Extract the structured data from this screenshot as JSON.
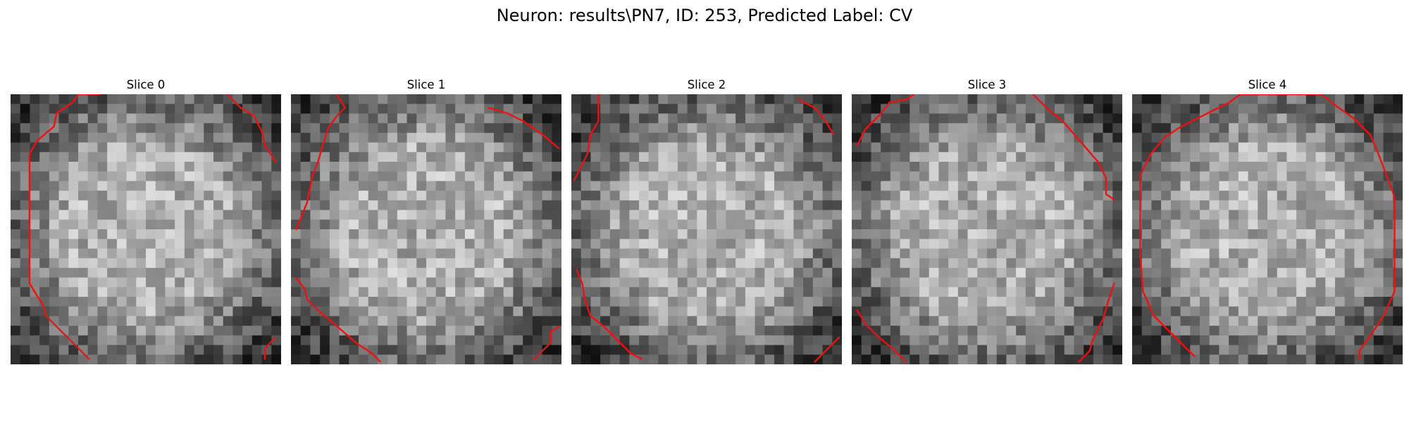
{
  "figure": {
    "title": "Neuron: results\\PN7, ID: 253, Predicted Label: CV"
  },
  "colors": {
    "contour": "#ee1111",
    "background": "#ffffff",
    "text": "#000000"
  },
  "panels": [
    {
      "title": "Slice 0",
      "contours": [
        [
          [
            0.33,
            0.0
          ],
          [
            0.25,
            0.0
          ],
          [
            0.23,
            0.03
          ],
          [
            0.17,
            0.07
          ],
          [
            0.16,
            0.12
          ],
          [
            0.1,
            0.17
          ],
          [
            0.07,
            0.22
          ],
          [
            0.07,
            0.7
          ],
          [
            0.1,
            0.75
          ],
          [
            0.12,
            0.78
          ],
          [
            0.13,
            0.82
          ],
          [
            0.17,
            0.86
          ],
          [
            0.23,
            0.92
          ],
          [
            0.29,
            0.98
          ]
        ],
        [
          [
            0.8,
            0.0
          ],
          [
            0.85,
            0.05
          ],
          [
            0.9,
            0.08
          ],
          [
            0.93,
            0.14
          ],
          [
            0.94,
            0.19
          ],
          [
            0.96,
            0.22
          ],
          [
            0.98,
            0.25
          ]
        ],
        [
          [
            0.98,
            0.9
          ],
          [
            0.94,
            0.94
          ],
          [
            0.94,
            0.98
          ]
        ]
      ]
    },
    {
      "title": "Slice 1",
      "contours": [
        [
          [
            0.17,
            0.0
          ],
          [
            0.2,
            0.05
          ],
          [
            0.17,
            0.08
          ],
          [
            0.14,
            0.12
          ],
          [
            0.12,
            0.18
          ],
          [
            0.1,
            0.25
          ],
          [
            0.08,
            0.3
          ],
          [
            0.07,
            0.35
          ],
          [
            0.06,
            0.4
          ],
          [
            0.04,
            0.45
          ],
          [
            0.02,
            0.5
          ]
        ],
        [
          [
            0.73,
            0.05
          ],
          [
            0.8,
            0.07
          ],
          [
            0.86,
            0.1
          ],
          [
            0.93,
            0.15
          ],
          [
            0.99,
            0.2
          ]
        ],
        [
          [
            0.02,
            0.68
          ],
          [
            0.05,
            0.72
          ],
          [
            0.06,
            0.76
          ],
          [
            0.1,
            0.8
          ],
          [
            0.16,
            0.85
          ],
          [
            0.24,
            0.92
          ],
          [
            0.3,
            0.96
          ],
          [
            0.33,
            0.99
          ]
        ],
        [
          [
            0.99,
            0.86
          ],
          [
            0.96,
            0.88
          ],
          [
            0.96,
            0.92
          ],
          [
            0.9,
            0.98
          ]
        ]
      ]
    },
    {
      "title": "Slice 2",
      "contours": [
        [
          [
            0.1,
            0.0
          ],
          [
            0.1,
            0.1
          ],
          [
            0.07,
            0.15
          ],
          [
            0.06,
            0.22
          ],
          [
            0.03,
            0.28
          ],
          [
            0.01,
            0.32
          ]
        ],
        [
          [
            0.84,
            0.02
          ],
          [
            0.9,
            0.05
          ],
          [
            0.94,
            0.1
          ],
          [
            0.97,
            0.15
          ]
        ],
        [
          [
            0.02,
            0.65
          ],
          [
            0.04,
            0.7
          ],
          [
            0.05,
            0.76
          ],
          [
            0.07,
            0.82
          ],
          [
            0.12,
            0.86
          ],
          [
            0.18,
            0.92
          ],
          [
            0.22,
            0.96
          ],
          [
            0.26,
            0.98
          ]
        ],
        [
          [
            0.99,
            0.9
          ],
          [
            0.95,
            0.94
          ],
          [
            0.9,
            0.99
          ]
        ]
      ]
    },
    {
      "title": "Slice 3",
      "contours": [
        [
          [
            0.02,
            0.19
          ],
          [
            0.05,
            0.13
          ],
          [
            0.1,
            0.08
          ],
          [
            0.14,
            0.03
          ],
          [
            0.2,
            0.02
          ],
          [
            0.23,
            0.0
          ]
        ],
        [
          [
            0.67,
            0.0
          ],
          [
            0.72,
            0.05
          ],
          [
            0.78,
            0.1
          ],
          [
            0.85,
            0.18
          ],
          [
            0.91,
            0.25
          ],
          [
            0.94,
            0.31
          ],
          [
            0.94,
            0.37
          ],
          [
            0.97,
            0.39
          ]
        ],
        [
          [
            0.02,
            0.8
          ],
          [
            0.05,
            0.85
          ],
          [
            0.1,
            0.9
          ],
          [
            0.15,
            0.94
          ],
          [
            0.18,
            0.97
          ],
          [
            0.2,
            0.99
          ]
        ],
        [
          [
            0.97,
            0.7
          ],
          [
            0.95,
            0.76
          ],
          [
            0.93,
            0.83
          ],
          [
            0.89,
            0.91
          ],
          [
            0.88,
            0.95
          ],
          [
            0.84,
            0.99
          ]
        ]
      ]
    },
    {
      "title": "Slice 4",
      "contours": [
        [
          [
            0.23,
            0.97
          ],
          [
            0.16,
            0.9
          ],
          [
            0.08,
            0.82
          ],
          [
            0.04,
            0.73
          ],
          [
            0.03,
            0.6
          ],
          [
            0.03,
            0.3
          ],
          [
            0.07,
            0.22
          ],
          [
            0.12,
            0.16
          ],
          [
            0.18,
            0.12
          ],
          [
            0.24,
            0.09
          ],
          [
            0.3,
            0.06
          ],
          [
            0.36,
            0.03
          ],
          [
            0.4,
            0.0
          ],
          [
            0.7,
            0.0
          ],
          [
            0.75,
            0.04
          ],
          [
            0.82,
            0.09
          ],
          [
            0.88,
            0.15
          ],
          [
            0.91,
            0.22
          ],
          [
            0.94,
            0.3
          ],
          [
            0.97,
            0.38
          ],
          [
            0.97,
            0.73
          ],
          [
            0.93,
            0.82
          ],
          [
            0.89,
            0.88
          ],
          [
            0.84,
            0.95
          ],
          [
            0.84,
            0.98
          ]
        ]
      ]
    }
  ]
}
